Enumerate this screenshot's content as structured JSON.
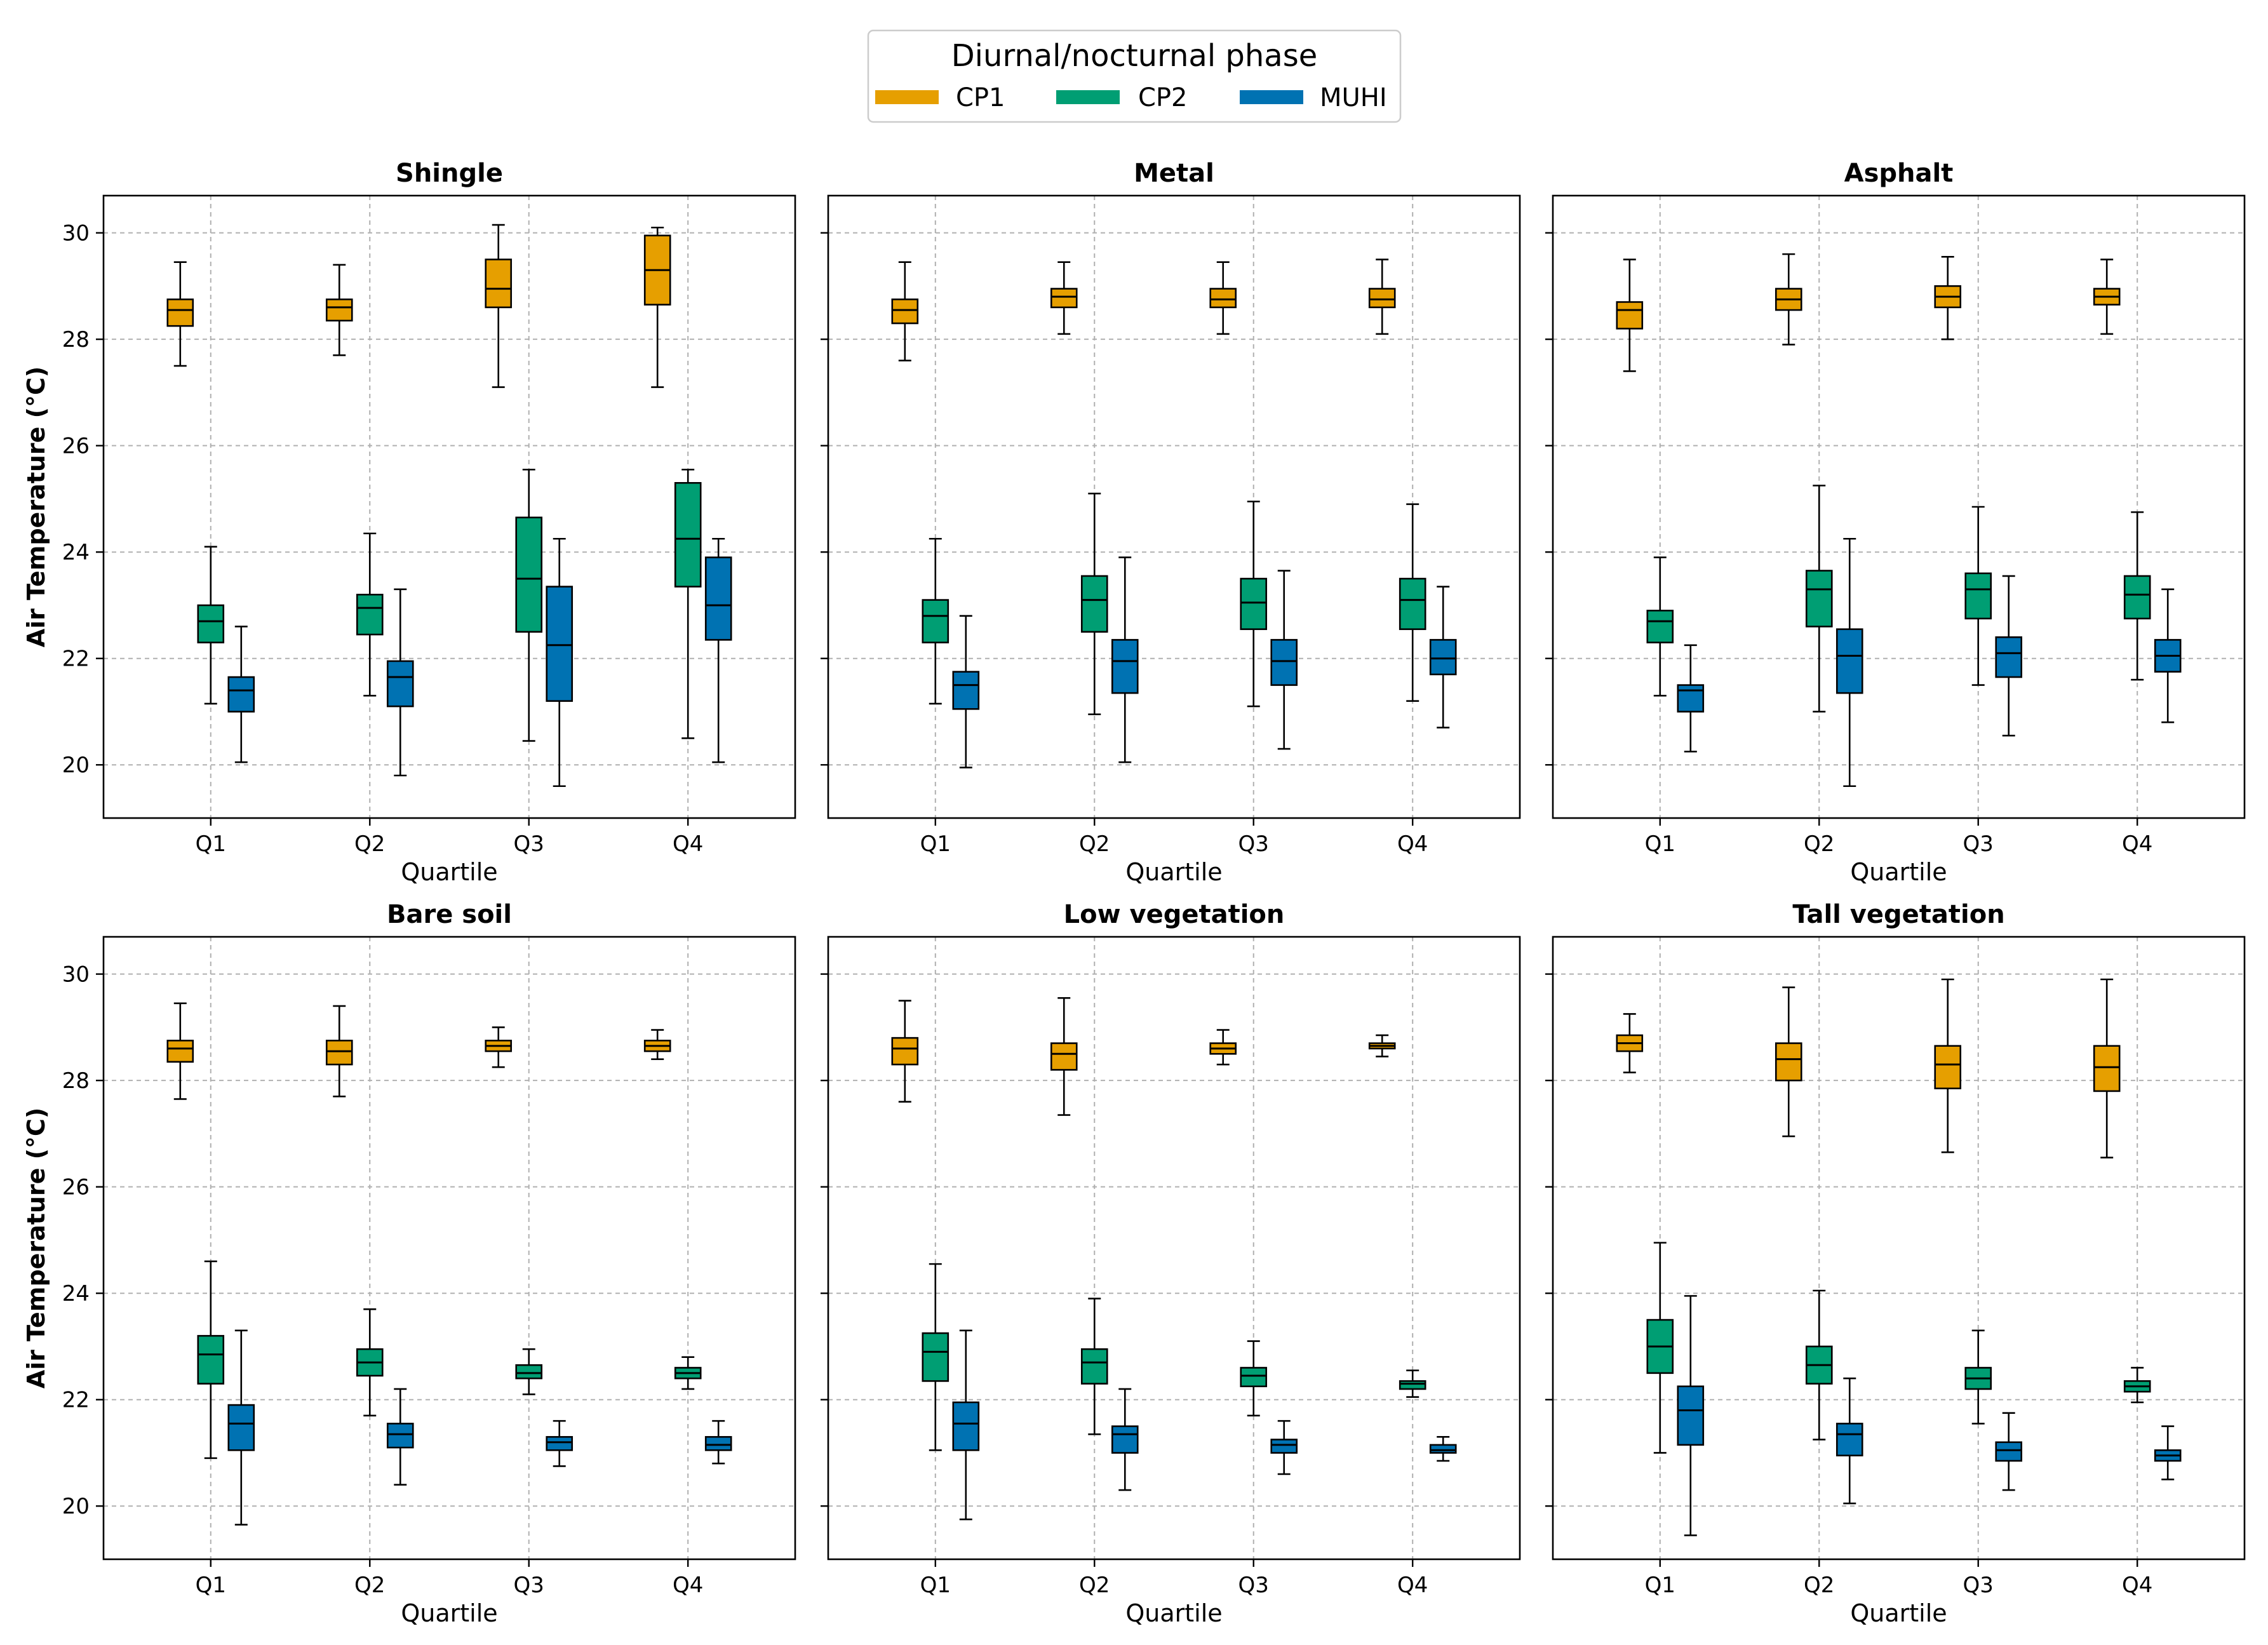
{
  "legend": {
    "title": "Diurnal/nocturnal phase",
    "items": [
      {
        "label": "CP1",
        "color": "#E69F00"
      },
      {
        "label": "CP2",
        "color": "#009E73"
      },
      {
        "label": "MUHI",
        "color": "#0072B2"
      }
    ]
  },
  "chart_data": {
    "type": "boxplot",
    "categories": [
      "Q1",
      "Q2",
      "Q3",
      "Q4"
    ],
    "xlabel": "Quartile",
    "ylabel": "Air Temperature (°C)",
    "ylim": [
      19,
      30.7
    ],
    "yticks": [
      20,
      22,
      24,
      26,
      28,
      30
    ],
    "grid": true,
    "series_names": [
      "CP1",
      "CP2",
      "MUHI"
    ],
    "panels": [
      {
        "title": "Shingle",
        "title_color": "#A52A2A",
        "groups": [
          {
            "category": "Q1",
            "CP1": [
              27.5,
              28.25,
              28.55,
              28.75,
              29.45
            ],
            "CP2": [
              21.15,
              22.3,
              22.7,
              23.0,
              24.1
            ],
            "MUHI": [
              20.05,
              21.0,
              21.4,
              21.65,
              22.6
            ]
          },
          {
            "category": "Q2",
            "CP1": [
              27.7,
              28.35,
              28.6,
              28.75,
              29.4
            ],
            "CP2": [
              21.3,
              22.45,
              22.95,
              23.2,
              24.35
            ],
            "MUHI": [
              19.8,
              21.1,
              21.65,
              21.95,
              23.3
            ]
          },
          {
            "category": "Q3",
            "CP1": [
              27.1,
              28.6,
              28.95,
              29.5,
              30.15
            ],
            "CP2": [
              20.45,
              22.5,
              23.5,
              24.65,
              25.55
            ],
            "MUHI": [
              19.6,
              21.2,
              22.25,
              23.35,
              24.25
            ]
          },
          {
            "category": "Q4",
            "CP1": [
              27.1,
              28.65,
              29.3,
              29.95,
              30.1
            ],
            "CP2": [
              20.5,
              23.35,
              24.25,
              25.3,
              25.55
            ],
            "MUHI": [
              20.05,
              22.35,
              23.0,
              23.9,
              24.25
            ]
          }
        ]
      },
      {
        "title": "Metal",
        "title_color": "#4D4D4D",
        "groups": [
          {
            "category": "Q1",
            "CP1": [
              27.6,
              28.3,
              28.55,
              28.75,
              29.45
            ],
            "CP2": [
              21.15,
              22.3,
              22.8,
              23.1,
              24.25
            ],
            "MUHI": [
              19.95,
              21.05,
              21.5,
              21.75,
              22.8
            ]
          },
          {
            "category": "Q2",
            "CP1": [
              28.1,
              28.6,
              28.8,
              28.95,
              29.45
            ],
            "CP2": [
              20.95,
              22.5,
              23.1,
              23.55,
              25.1
            ],
            "MUHI": [
              20.05,
              21.35,
              21.95,
              22.35,
              23.9
            ]
          },
          {
            "category": "Q3",
            "CP1": [
              28.1,
              28.6,
              28.75,
              28.95,
              29.45
            ],
            "CP2": [
              21.1,
              22.55,
              23.05,
              23.5,
              24.95
            ],
            "MUHI": [
              20.3,
              21.5,
              21.95,
              22.35,
              23.65
            ]
          },
          {
            "category": "Q4",
            "CP1": [
              28.1,
              28.6,
              28.75,
              28.95,
              29.5
            ],
            "CP2": [
              21.2,
              22.55,
              23.1,
              23.5,
              24.9
            ],
            "MUHI": [
              20.7,
              21.7,
              22.0,
              22.35,
              23.35
            ]
          }
        ]
      },
      {
        "title": "Asphalt",
        "title_color": "#000000",
        "groups": [
          {
            "category": "Q1",
            "CP1": [
              27.4,
              28.2,
              28.55,
              28.7,
              29.5
            ],
            "CP2": [
              21.3,
              22.3,
              22.7,
              22.9,
              23.9
            ],
            "MUHI": [
              20.25,
              21.0,
              21.4,
              21.5,
              22.25
            ]
          },
          {
            "category": "Q2",
            "CP1": [
              27.9,
              28.55,
              28.75,
              28.95,
              29.6
            ],
            "CP2": [
              21.0,
              22.6,
              23.3,
              23.65,
              25.25
            ],
            "MUHI": [
              19.6,
              21.35,
              22.05,
              22.55,
              24.25
            ]
          },
          {
            "category": "Q3",
            "CP1": [
              28.0,
              28.6,
              28.8,
              29.0,
              29.55
            ],
            "CP2": [
              21.5,
              22.75,
              23.3,
              23.6,
              24.85
            ],
            "MUHI": [
              20.55,
              21.65,
              22.1,
              22.4,
              23.55
            ]
          },
          {
            "category": "Q4",
            "CP1": [
              28.1,
              28.65,
              28.8,
              28.95,
              29.5
            ],
            "CP2": [
              21.6,
              22.75,
              23.2,
              23.55,
              24.75
            ],
            "MUHI": [
              20.8,
              21.75,
              22.05,
              22.35,
              23.3
            ]
          }
        ]
      },
      {
        "title": "Bare soil",
        "title_color": "#A0522D",
        "groups": [
          {
            "category": "Q1",
            "CP1": [
              27.65,
              28.35,
              28.6,
              28.75,
              29.45
            ],
            "CP2": [
              20.9,
              22.3,
              22.85,
              23.2,
              24.6
            ],
            "MUHI": [
              19.65,
              21.05,
              21.55,
              21.9,
              23.3
            ]
          },
          {
            "category": "Q2",
            "CP1": [
              27.7,
              28.3,
              28.55,
              28.75,
              29.4
            ],
            "CP2": [
              21.7,
              22.45,
              22.7,
              22.95,
              23.7
            ],
            "MUHI": [
              20.4,
              21.1,
              21.35,
              21.55,
              22.2
            ]
          },
          {
            "category": "Q3",
            "CP1": [
              28.25,
              28.55,
              28.65,
              28.75,
              29.0
            ],
            "CP2": [
              22.1,
              22.4,
              22.5,
              22.65,
              22.95
            ],
            "MUHI": [
              20.75,
              21.05,
              21.2,
              21.3,
              21.6
            ]
          },
          {
            "category": "Q4",
            "CP1": [
              28.4,
              28.55,
              28.65,
              28.75,
              28.95
            ],
            "CP2": [
              22.2,
              22.4,
              22.5,
              22.6,
              22.8
            ],
            "MUHI": [
              20.8,
              21.05,
              21.15,
              21.3,
              21.6
            ]
          }
        ]
      },
      {
        "title": "Low vegetation",
        "title_color": "#90EE90",
        "groups": [
          {
            "category": "Q1",
            "CP1": [
              27.6,
              28.3,
              28.6,
              28.8,
              29.5
            ],
            "CP2": [
              21.05,
              22.35,
              22.9,
              23.25,
              24.55
            ],
            "MUHI": [
              19.75,
              21.05,
              21.55,
              21.95,
              23.3
            ]
          },
          {
            "category": "Q2",
            "CP1": [
              27.35,
              28.2,
              28.5,
              28.7,
              29.55
            ],
            "CP2": [
              21.35,
              22.3,
              22.7,
              22.95,
              23.9
            ],
            "MUHI": [
              20.3,
              21.0,
              21.35,
              21.5,
              22.2
            ]
          },
          {
            "category": "Q3",
            "CP1": [
              28.3,
              28.5,
              28.6,
              28.7,
              28.95
            ],
            "CP2": [
              21.7,
              22.25,
              22.45,
              22.6,
              23.1
            ],
            "MUHI": [
              20.6,
              21.0,
              21.15,
              21.25,
              21.6
            ]
          },
          {
            "category": "Q4",
            "CP1": [
              28.45,
              28.6,
              28.65,
              28.7,
              28.85
            ],
            "CP2": [
              22.05,
              22.2,
              22.3,
              22.35,
              22.55
            ],
            "MUHI": [
              20.85,
              21.0,
              21.05,
              21.15,
              21.3
            ]
          }
        ]
      },
      {
        "title": "Tall vegetation",
        "title_color": "#006400",
        "groups": [
          {
            "category": "Q1",
            "CP1": [
              28.15,
              28.55,
              28.7,
              28.85,
              29.25
            ],
            "CP2": [
              21.0,
              22.5,
              23.0,
              23.5,
              24.95
            ],
            "MUHI": [
              19.45,
              21.15,
              21.8,
              22.25,
              23.95
            ]
          },
          {
            "category": "Q2",
            "CP1": [
              26.95,
              28.0,
              28.4,
              28.7,
              29.75
            ],
            "CP2": [
              21.25,
              22.3,
              22.65,
              23.0,
              24.05
            ],
            "MUHI": [
              20.05,
              20.95,
              21.35,
              21.55,
              22.4
            ]
          },
          {
            "category": "Q3",
            "CP1": [
              26.65,
              27.85,
              28.3,
              28.65,
              29.9
            ],
            "CP2": [
              21.55,
              22.2,
              22.4,
              22.6,
              23.3
            ],
            "MUHI": [
              20.3,
              20.85,
              21.05,
              21.2,
              21.75
            ]
          },
          {
            "category": "Q4",
            "CP1": [
              26.55,
              27.8,
              28.25,
              28.65,
              29.9
            ],
            "CP2": [
              21.95,
              22.15,
              22.25,
              22.35,
              22.6
            ],
            "MUHI": [
              20.5,
              20.85,
              20.95,
              21.05,
              21.5
            ]
          }
        ]
      }
    ]
  }
}
